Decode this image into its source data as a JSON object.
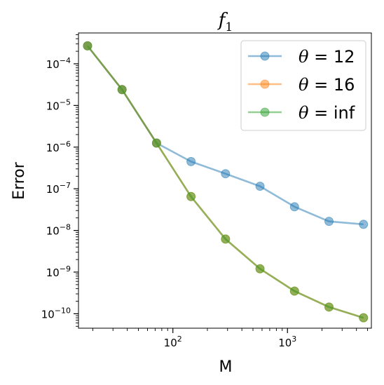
{
  "chart_data": {
    "type": "line",
    "title": "f",
    "title_subscript": "1",
    "xlabel": "M",
    "ylabel": "Error",
    "xscale": "log",
    "yscale": "log",
    "xlim": [
      15,
      5400
    ],
    "ylim": [
      4.5e-11,
      0.00055
    ],
    "x_ticks": [
      {
        "value": 100,
        "base": "10",
        "exp": "2"
      },
      {
        "value": 1000,
        "base": "10",
        "exp": "3"
      }
    ],
    "y_ticks": [
      {
        "value": 0.0001,
        "base": "10",
        "exp": "−4"
      },
      {
        "value": 1e-05,
        "base": "10",
        "exp": "−5"
      },
      {
        "value": 1e-06,
        "base": "10",
        "exp": "−6"
      },
      {
        "value": 1e-07,
        "base": "10",
        "exp": "−7"
      },
      {
        "value": 1e-08,
        "base": "10",
        "exp": "−8"
      },
      {
        "value": 1e-09,
        "base": "10",
        "exp": "−9"
      },
      {
        "value": 1e-10,
        "base": "10",
        "exp": "−10"
      }
    ],
    "x": [
      18,
      36,
      72,
      144,
      288,
      576,
      1152,
      2304,
      4608
    ],
    "series": [
      {
        "name": "θ = 12",
        "legend_symbol": "θ",
        "legend_rest": " = 12",
        "color": "#1f77b4",
        "values": [
          0.00027,
          2.4e-05,
          1.25e-06,
          4.5e-07,
          2.3e-07,
          1.15e-07,
          3.7e-08,
          1.65e-08,
          1.4e-08
        ]
      },
      {
        "name": "θ = 16",
        "legend_symbol": "θ",
        "legend_rest": " = 16",
        "color": "#ff7f0e",
        "values": [
          0.00027,
          2.4e-05,
          1.25e-06,
          6.5e-08,
          6.2e-09,
          1.2e-09,
          3.5e-10,
          1.45e-10,
          8e-11
        ]
      },
      {
        "name": "θ = inf",
        "legend_symbol": "θ",
        "legend_rest": " = inf",
        "color": "#2ca02c",
        "values": [
          0.00027,
          2.4e-05,
          1.25e-06,
          6.5e-08,
          6.2e-09,
          1.2e-09,
          3.5e-10,
          1.45e-10,
          8e-11
        ]
      }
    ],
    "legend_position": "top-right",
    "grid": false
  }
}
